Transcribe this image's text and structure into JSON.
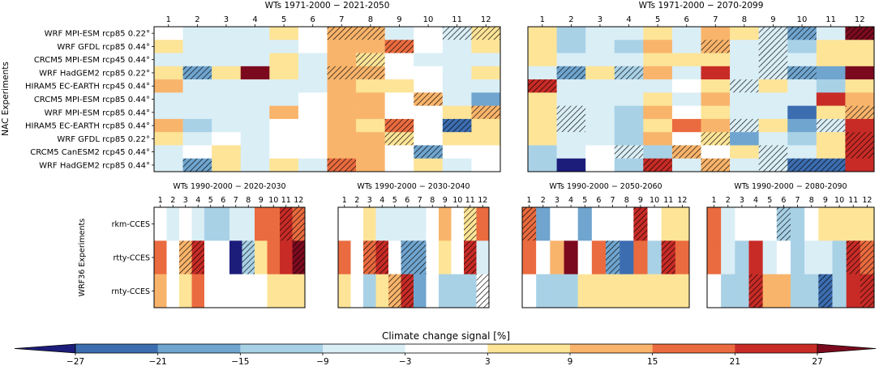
{
  "chart_data": {
    "type": "heatmap",
    "colorbar": {
      "label": "Climate change signal  [%]",
      "ticks": [
        "−27",
        "−21",
        "−15",
        "−9",
        "−3",
        "3",
        "9",
        "15",
        "21",
        "27"
      ],
      "bins": [
        {
          "range": "< -27",
          "color": "#1c1d7a"
        },
        {
          "range": "-27 to -21",
          "color": "#3c6db0"
        },
        {
          "range": "-21 to -15",
          "color": "#6fa5cf"
        },
        {
          "range": "-15 to -9",
          "color": "#a8d1e6"
        },
        {
          "range": "-9 to -3",
          "color": "#daeef6"
        },
        {
          "range": "-3 to 3",
          "color": "#ffffff"
        },
        {
          "range": "3 to 9",
          "color": "#fde497"
        },
        {
          "range": "9 to 15",
          "color": "#f9b46b"
        },
        {
          "range": "15 to 21",
          "color": "#ea6b3f"
        },
        {
          "range": "21 to 27",
          "color": "#c82b26"
        },
        {
          "range": "> 27",
          "color": "#7c0a1e"
        }
      ],
      "legend": "bottom, extended triangles both ends"
    },
    "x_categories": [
      "1",
      "2",
      "3",
      "4",
      "5",
      "6",
      "7",
      "8",
      "9",
      "10",
      "11",
      "12"
    ],
    "hatch_meaning": "diagonal hatching marks cells flagged significant",
    "panels": [
      {
        "title": "WTs 1971-2000 − 2021-2050",
        "ylabel": "NAC Experiments",
        "rows": [
          "WRF MPI-ESM rcp85 0.22°",
          "WRF GFDL rcp85 0.44°",
          "CRCM5 MPI-ESM rcp45 0.44°",
          "WRF HadGEM2 rcp85 0.22°",
          "HIRAM5 EC-EARTH rcp45 0.44°",
          "CRCM5 MPI-ESM rcp85 0.44°",
          "WRF MPI-ESM rcp85 0.44°",
          "HIRAM5 EC-EARTH rcp85 0.44°",
          "WRF GFDL rcp85 0.22°",
          "CRCM5 CanESM2 rcp45 0.44°",
          "WRF HadGEM2 rcp85 0.44°"
        ],
        "values": [
          [
            0,
            -6,
            -6,
            -6,
            5,
            0,
            12,
            12,
            -6,
            0,
            -6,
            8
          ],
          [
            6,
            -6,
            -6,
            -6,
            -6,
            0,
            12,
            12,
            18,
            0,
            -6,
            6
          ],
          [
            -6,
            -6,
            -6,
            -6,
            6,
            -6,
            12,
            6,
            0,
            -6,
            -6,
            -6
          ],
          [
            6,
            -18,
            6,
            30,
            6,
            -6,
            12,
            12,
            0,
            0,
            -6,
            6
          ],
          [
            12,
            -6,
            -6,
            -6,
            -6,
            -6,
            12,
            6,
            6,
            0,
            -6,
            -6
          ],
          [
            -6,
            -6,
            -6,
            -6,
            -6,
            0,
            12,
            12,
            0,
            12,
            -6,
            -18
          ],
          [
            -6,
            -6,
            -6,
            -6,
            12,
            0,
            12,
            12,
            0,
            0,
            6,
            12
          ],
          [
            12,
            -12,
            -6,
            -6,
            0,
            0,
            12,
            6,
            18,
            0,
            -24,
            6
          ],
          [
            6,
            -6,
            0,
            -6,
            0,
            0,
            12,
            12,
            6,
            0,
            6,
            6
          ],
          [
            -6,
            0,
            6,
            -6,
            0,
            0,
            12,
            12,
            0,
            -18,
            0,
            0
          ],
          [
            -6,
            -18,
            6,
            -6,
            6,
            -6,
            18,
            12,
            0,
            6,
            -6,
            0
          ]
        ],
        "hatch": [
          [
            0,
            0,
            0,
            0,
            0,
            0,
            1,
            1,
            0,
            0,
            1,
            1
          ],
          [
            0,
            0,
            0,
            0,
            0,
            0,
            0,
            0,
            1,
            0,
            0,
            0
          ],
          [
            0,
            0,
            0,
            0,
            0,
            0,
            0,
            1,
            0,
            0,
            0,
            0
          ],
          [
            0,
            1,
            0,
            0,
            0,
            0,
            1,
            1,
            0,
            0,
            0,
            0
          ],
          [
            0,
            0,
            0,
            0,
            0,
            0,
            0,
            0,
            0,
            0,
            0,
            0
          ],
          [
            0,
            0,
            0,
            0,
            0,
            0,
            0,
            0,
            0,
            1,
            0,
            0
          ],
          [
            0,
            0,
            0,
            0,
            0,
            0,
            0,
            0,
            0,
            0,
            0,
            1
          ],
          [
            0,
            0,
            0,
            0,
            0,
            0,
            0,
            0,
            1,
            0,
            1,
            0
          ],
          [
            0,
            0,
            0,
            0,
            0,
            0,
            0,
            0,
            1,
            0,
            0,
            0
          ],
          [
            0,
            0,
            0,
            0,
            0,
            0,
            0,
            0,
            0,
            1,
            0,
            0
          ],
          [
            0,
            1,
            0,
            0,
            0,
            0,
            1,
            0,
            0,
            0,
            0,
            0
          ]
        ]
      },
      {
        "title": "WTs 1971-2000 − 2070-2099",
        "rows": [],
        "values": [
          [
            6,
            -12,
            -6,
            -6,
            6,
            -6,
            12,
            6,
            -6,
            -18,
            -6,
            30
          ],
          [
            6,
            -12,
            -6,
            -12,
            12,
            -6,
            12,
            -6,
            -6,
            -12,
            6,
            6
          ],
          [
            6,
            -6,
            -6,
            -6,
            6,
            6,
            6,
            -6,
            -6,
            -6,
            6,
            6
          ],
          [
            -6,
            -18,
            6,
            -12,
            12,
            -6,
            24,
            -6,
            -6,
            -18,
            -18,
            30
          ],
          [
            24,
            -6,
            -6,
            -6,
            -6,
            0,
            6,
            -6,
            6,
            -6,
            -12,
            6
          ],
          [
            6,
            -6,
            -6,
            -6,
            6,
            -6,
            12,
            -6,
            -6,
            -6,
            24,
            12
          ],
          [
            6,
            -6,
            -6,
            -12,
            12,
            0,
            6,
            -6,
            -6,
            -24,
            6,
            12
          ],
          [
            6,
            -6,
            -6,
            -12,
            6,
            18,
            12,
            -6,
            6,
            -18,
            -6,
            24
          ],
          [
            6,
            -6,
            -6,
            -12,
            12,
            0,
            6,
            -18,
            -6,
            -12,
            6,
            24
          ],
          [
            -12,
            -6,
            0,
            -6,
            -12,
            12,
            0,
            6,
            -6,
            -6,
            6,
            24
          ],
          [
            -12,
            -30,
            0,
            -12,
            24,
            -6,
            12,
            -6,
            -6,
            -24,
            -24,
            24
          ]
        ],
        "hatch": [
          [
            0,
            0,
            0,
            0,
            0,
            0,
            0,
            0,
            1,
            1,
            0,
            1
          ],
          [
            0,
            0,
            0,
            0,
            0,
            0,
            1,
            0,
            1,
            0,
            0,
            0
          ],
          [
            0,
            0,
            0,
            0,
            0,
            0,
            0,
            0,
            1,
            0,
            0,
            0
          ],
          [
            0,
            1,
            0,
            1,
            0,
            0,
            0,
            0,
            1,
            1,
            0,
            0
          ],
          [
            1,
            0,
            0,
            0,
            0,
            0,
            0,
            1,
            0,
            0,
            0,
            0
          ],
          [
            0,
            0,
            0,
            0,
            0,
            0,
            0,
            0,
            0,
            0,
            0,
            0
          ],
          [
            0,
            1,
            0,
            0,
            0,
            0,
            0,
            0,
            0,
            0,
            0,
            1
          ],
          [
            0,
            1,
            0,
            0,
            0,
            0,
            0,
            1,
            0,
            0,
            1,
            0
          ],
          [
            0,
            0,
            0,
            0,
            0,
            0,
            1,
            0,
            0,
            0,
            0,
            1
          ],
          [
            0,
            0,
            0,
            1,
            0,
            1,
            0,
            0,
            1,
            0,
            0,
            1
          ],
          [
            0,
            0,
            0,
            0,
            1,
            0,
            1,
            0,
            1,
            1,
            1,
            0
          ]
        ]
      },
      {
        "title": "WTs 1990-2000 − 2020-2030",
        "ylabel": "WRF36 Experiments",
        "rows": [
          "rkm-CCES",
          "rtty-CCES",
          "rnty-CCES"
        ],
        "values": [
          [
            0,
            -6,
            0,
            -6,
            -12,
            -12,
            -6,
            -6,
            18,
            18,
            24,
            18
          ],
          [
            18,
            0,
            12,
            24,
            0,
            0,
            -30,
            -12,
            6,
            18,
            24,
            30
          ],
          [
            12,
            0,
            6,
            18,
            0,
            0,
            0,
            0,
            0,
            6,
            6,
            6
          ]
        ],
        "hatch": [
          [
            0,
            0,
            0,
            0,
            0,
            0,
            0,
            0,
            0,
            0,
            1,
            1
          ],
          [
            0,
            0,
            1,
            1,
            0,
            0,
            0,
            1,
            0,
            0,
            0,
            1
          ],
          [
            0,
            0,
            0,
            0,
            0,
            0,
            0,
            0,
            0,
            0,
            0,
            0
          ]
        ]
      },
      {
        "title": "WTs 1990-2000 − 2030-2040",
        "rows": [],
        "values": [
          [
            0,
            0,
            6,
            -6,
            -6,
            -6,
            -6,
            0,
            12,
            0,
            6,
            18
          ],
          [
            18,
            0,
            18,
            24,
            0,
            -18,
            -18,
            0,
            6,
            0,
            24,
            -6
          ],
          [
            6,
            0,
            -12,
            6,
            12,
            24,
            -18,
            0,
            -12,
            -12,
            -12,
            0
          ]
        ],
        "hatch": [
          [
            0,
            0,
            0,
            0,
            0,
            0,
            0,
            0,
            0,
            0,
            1,
            0
          ],
          [
            0,
            0,
            1,
            1,
            0,
            1,
            1,
            0,
            0,
            0,
            1,
            0
          ],
          [
            0,
            0,
            0,
            0,
            1,
            1,
            0,
            0,
            0,
            0,
            0,
            1
          ]
        ]
      },
      {
        "title": "WTs 1990-2000 − 2050-2060",
        "rows": [],
        "values": [
          [
            18,
            -18,
            0,
            0,
            -18,
            0,
            0,
            0,
            24,
            0,
            6,
            6
          ],
          [
            18,
            0,
            12,
            30,
            0,
            18,
            -18,
            -24,
            18,
            -12,
            24,
            18
          ],
          [
            0,
            -12,
            -12,
            -12,
            6,
            6,
            6,
            6,
            6,
            6,
            6,
            6
          ]
        ],
        "hatch": [
          [
            1,
            0,
            0,
            0,
            0,
            0,
            0,
            0,
            1,
            0,
            0,
            0
          ],
          [
            0,
            0,
            0,
            0,
            0,
            0,
            1,
            0,
            0,
            0,
            1,
            0
          ],
          [
            0,
            0,
            0,
            0,
            0,
            0,
            0,
            0,
            0,
            0,
            0,
            0
          ]
        ]
      },
      {
        "title": "WTs 1990-2000 − 2080-2090",
        "rows": [],
        "values": [
          [
            18,
            -6,
            0,
            0,
            0,
            -12,
            -12,
            0,
            6,
            6,
            6,
            6
          ],
          [
            18,
            -6,
            -12,
            24,
            -6,
            0,
            -12,
            -6,
            -6,
            -12,
            24,
            18
          ],
          [
            0,
            -12,
            -12,
            24,
            12,
            12,
            -12,
            -12,
            -24,
            -12,
            24,
            24
          ]
        ],
        "hatch": [
          [
            0,
            0,
            0,
            0,
            0,
            1,
            0,
            0,
            0,
            0,
            0,
            0
          ],
          [
            0,
            0,
            0,
            0,
            0,
            0,
            0,
            0,
            0,
            0,
            1,
            1
          ],
          [
            0,
            0,
            0,
            1,
            0,
            0,
            0,
            0,
            1,
            0,
            0,
            1
          ]
        ]
      }
    ]
  }
}
